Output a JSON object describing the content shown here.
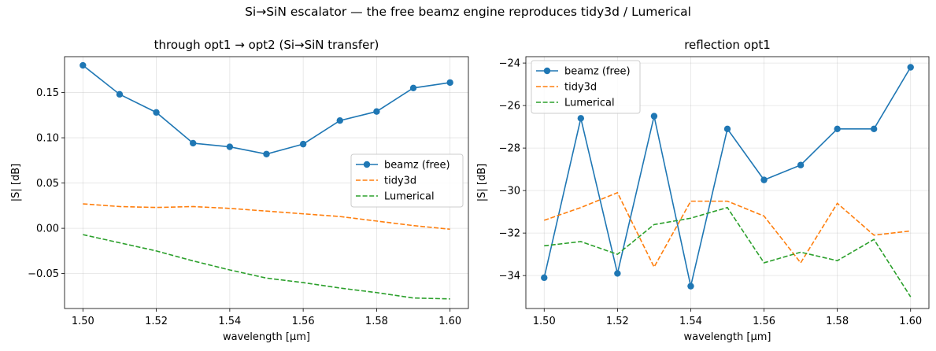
{
  "suptitle": "Si→SiN escalator — the free beamz engine reproduces tidy3d / Lumerical",
  "colors": {
    "beamz": "#1f77b4",
    "tidy3d": "#ff7f0e",
    "lumerical": "#2ca02c",
    "grid": "#b0b0b0"
  },
  "chart_data": [
    {
      "type": "line",
      "title": "through  opt1 → opt2  (Si→SiN transfer)",
      "xlabel": "wavelength [μm]",
      "ylabel": "|S| [dB]",
      "xlim": [
        1.495,
        1.605
      ],
      "ylim": [
        -0.0886,
        0.1896
      ],
      "xticks": [
        1.5,
        1.52,
        1.54,
        1.56,
        1.58,
        1.6
      ],
      "xtick_labels": [
        "1.50",
        "1.52",
        "1.54",
        "1.56",
        "1.58",
        "1.60"
      ],
      "yticks": [
        -0.05,
        0.0,
        0.05,
        0.1,
        0.15
      ],
      "ytick_labels": [
        "−0.05",
        "0.00",
        "0.05",
        "0.10",
        "0.15"
      ],
      "grid": true,
      "legend_position": "center-right",
      "x": [
        1.5,
        1.51,
        1.52,
        1.53,
        1.54,
        1.55,
        1.56,
        1.57,
        1.58,
        1.59,
        1.6
      ],
      "series": [
        {
          "name": "beamz (free)",
          "style": "solid-marker",
          "color": "#1f77b4",
          "values": [
            0.18,
            0.148,
            0.128,
            0.094,
            0.09,
            0.082,
            0.093,
            0.119,
            0.129,
            0.155,
            0.161
          ]
        },
        {
          "name": "tidy3d",
          "style": "dashed",
          "color": "#ff7f0e",
          "values": [
            0.027,
            0.024,
            0.023,
            0.024,
            0.022,
            0.019,
            0.016,
            0.013,
            0.008,
            0.003,
            -0.001
          ]
        },
        {
          "name": "Lumerical",
          "style": "dashed",
          "color": "#2ca02c",
          "values": [
            -0.007,
            -0.016,
            -0.025,
            -0.036,
            -0.046,
            -0.055,
            -0.06,
            -0.066,
            -0.071,
            -0.077,
            -0.078
          ]
        }
      ]
    },
    {
      "type": "line",
      "title": "reflection  opt1",
      "xlabel": "wavelength [μm]",
      "ylabel": "|S| [dB]",
      "xlim": [
        1.495,
        1.605
      ],
      "ylim": [
        -35.55,
        -23.7
      ],
      "xticks": [
        1.5,
        1.52,
        1.54,
        1.56,
        1.58,
        1.6
      ],
      "xtick_labels": [
        "1.50",
        "1.52",
        "1.54",
        "1.56",
        "1.58",
        "1.60"
      ],
      "yticks": [
        -34,
        -32,
        -30,
        -28,
        -26,
        -24
      ],
      "ytick_labels": [
        "−34",
        "−32",
        "−30",
        "−28",
        "−26",
        "−24"
      ],
      "grid": true,
      "legend_position": "upper-left",
      "x": [
        1.5,
        1.51,
        1.52,
        1.53,
        1.54,
        1.55,
        1.56,
        1.57,
        1.58,
        1.59,
        1.6
      ],
      "series": [
        {
          "name": "beamz (free)",
          "style": "solid-marker",
          "color": "#1f77b4",
          "values": [
            -34.1,
            -26.6,
            -33.9,
            -26.5,
            -34.5,
            -27.1,
            -29.5,
            -28.8,
            -27.1,
            -27.1,
            -24.2
          ]
        },
        {
          "name": "tidy3d",
          "style": "dashed",
          "color": "#ff7f0e",
          "values": [
            -31.4,
            -30.8,
            -30.1,
            -33.6,
            -30.5,
            -30.5,
            -31.2,
            -33.4,
            -30.6,
            -32.1,
            -31.9
          ]
        },
        {
          "name": "Lumerical",
          "style": "dashed",
          "color": "#2ca02c",
          "values": [
            -32.6,
            -32.4,
            -33.0,
            -31.6,
            -31.3,
            -30.8,
            -33.4,
            -32.9,
            -33.3,
            -32.3,
            -35.0
          ]
        }
      ]
    }
  ]
}
